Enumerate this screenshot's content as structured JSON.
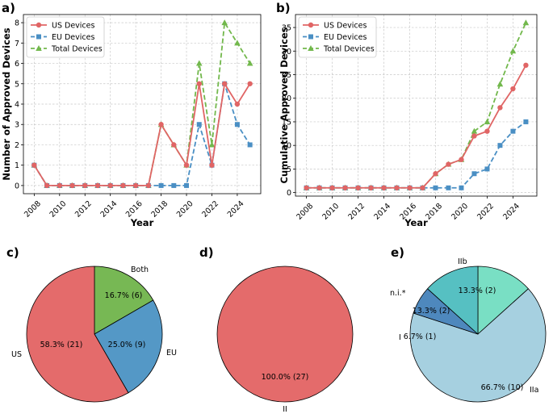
{
  "figure": {
    "panels": [
      "a)",
      "b)",
      "c)",
      "d)",
      "e)"
    ]
  },
  "colors": {
    "us": "#e06565",
    "eu": "#4a8fc4",
    "total": "#72b84c"
  },
  "chart_data": [
    {
      "type": "line",
      "panel": "a)",
      "xlabel": "Year",
      "ylabel": "Number of Approved Devices",
      "x": [
        2008,
        2009,
        2010,
        2011,
        2012,
        2013,
        2014,
        2015,
        2016,
        2017,
        2018,
        2019,
        2020,
        2021,
        2022,
        2023,
        2024,
        2025
      ],
      "xticks": [
        2008,
        2010,
        2012,
        2014,
        2016,
        2018,
        2020,
        2022,
        2024
      ],
      "yticks": [
        0,
        1,
        2,
        3,
        4,
        5,
        6,
        7,
        8
      ],
      "xlim": [
        2007.15,
        2025.85
      ],
      "ylim": [
        -0.4,
        8.4
      ],
      "grid": true,
      "legend": "top-left",
      "series": [
        {
          "name": "US Devices",
          "style": "solid",
          "marker": "circle",
          "color": "#e06565",
          "values": [
            1,
            0,
            0,
            0,
            0,
            0,
            0,
            0,
            0,
            0,
            3,
            2,
            1,
            5,
            1,
            5,
            4,
            5
          ]
        },
        {
          "name": "EU Devices",
          "style": "dashed",
          "marker": "square",
          "color": "#4a8fc4",
          "values": [
            1,
            0,
            0,
            0,
            0,
            0,
            0,
            0,
            0,
            0,
            0,
            0,
            0,
            3,
            1,
            5,
            3,
            2
          ]
        },
        {
          "name": "Total Devices",
          "style": "dashed",
          "marker": "triangle",
          "color": "#72b84c",
          "values": [
            1,
            0,
            0,
            0,
            0,
            0,
            0,
            0,
            0,
            0,
            3,
            2,
            1,
            6,
            2,
            8,
            7,
            6
          ]
        }
      ]
    },
    {
      "type": "line",
      "panel": "b)",
      "xlabel": "Year",
      "ylabel": "Cumulative Approved Devices",
      "x": [
        2008,
        2009,
        2010,
        2011,
        2012,
        2013,
        2014,
        2015,
        2016,
        2017,
        2018,
        2019,
        2020,
        2021,
        2022,
        2023,
        2024,
        2025
      ],
      "xticks": [
        2008,
        2010,
        2012,
        2014,
        2016,
        2018,
        2020,
        2022,
        2024
      ],
      "yticks": [
        0,
        5,
        10,
        15,
        20,
        25,
        30,
        35
      ],
      "xlim": [
        2007.15,
        2025.85
      ],
      "ylim": [
        -0.75,
        37.75
      ],
      "grid": true,
      "legend": "top-left",
      "series": [
        {
          "name": "US Devices",
          "style": "solid",
          "marker": "circle",
          "color": "#e06565",
          "values": [
            1,
            1,
            1,
            1,
            1,
            1,
            1,
            1,
            1,
            1,
            4,
            6,
            7,
            12,
            13,
            18,
            22,
            27
          ]
        },
        {
          "name": "EU Devices",
          "style": "dashed",
          "marker": "square",
          "color": "#4a8fc4",
          "values": [
            1,
            1,
            1,
            1,
            1,
            1,
            1,
            1,
            1,
            1,
            1,
            1,
            1,
            4,
            5,
            10,
            13,
            15
          ]
        },
        {
          "name": "Total Devices",
          "style": "dashed",
          "marker": "triangle",
          "color": "#72b84c",
          "values": [
            1,
            1,
            1,
            1,
            1,
            1,
            1,
            1,
            1,
            1,
            4,
            6,
            7,
            13,
            15,
            23,
            30,
            36
          ]
        }
      ]
    },
    {
      "type": "pie",
      "panel": "c)",
      "slices": [
        {
          "label": "Both",
          "value": 6,
          "text": "16.7% (6)",
          "color": "#77b854"
        },
        {
          "label": "EU",
          "value": 9,
          "text": "25.0% (9)",
          "color": "#5498c6"
        },
        {
          "label": "US",
          "value": 21,
          "text": "58.3% (21)",
          "color": "#e46b6b"
        }
      ]
    },
    {
      "type": "pie",
      "panel": "d)",
      "slices": [
        {
          "label": "II",
          "value": 27,
          "text": "100.0% (27)",
          "color": "#e46b6b"
        }
      ]
    },
    {
      "type": "pie",
      "panel": "e)",
      "slices": [
        {
          "label": "IIb",
          "value": 2,
          "text": "13.3% (2)",
          "color": "#79dfc4"
        },
        {
          "label": "IIa",
          "value": 10,
          "text": "66.7% (10)",
          "color": "#a6d0e0"
        },
        {
          "label": "I",
          "value": 1,
          "text": "6.7% (1)",
          "color": "#4e88bd"
        },
        {
          "label": "n.i.*",
          "value": 2,
          "text": "13.3% (2)",
          "color": "#56c0c2"
        }
      ]
    }
  ]
}
